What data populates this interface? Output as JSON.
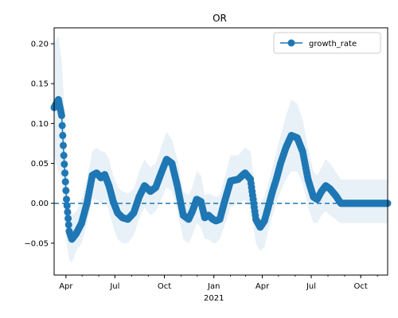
{
  "chart_data": {
    "type": "line",
    "title": "OR",
    "xlabel": "",
    "ylabel": "",
    "x_start": "2020-03-10",
    "x_end": "2021-11-20",
    "ylim": [
      -0.09,
      0.22
    ],
    "x_ticks": [
      {
        "date": "2020-04-01",
        "label": "Apr"
      },
      {
        "date": "2020-07-01",
        "label": "Jul"
      },
      {
        "date": "2020-10-01",
        "label": "Oct"
      },
      {
        "date": "2021-01-01",
        "label": "Jan"
      },
      {
        "date": "2021-04-01",
        "label": "Apr"
      },
      {
        "date": "2021-07-01",
        "label": "Jul"
      },
      {
        "date": "2021-10-01",
        "label": "Oct"
      }
    ],
    "x_year_label": "2021",
    "y_ticks": [
      -0.05,
      0.0,
      0.05,
      0.1,
      0.15,
      0.2
    ],
    "y_tick_labels": [
      "−0.05",
      "0.00",
      "0.05",
      "0.10",
      "0.15",
      "0.20"
    ],
    "reference_line_y": 0,
    "legend_position": "top-right",
    "series": [
      {
        "name": "growth_rate",
        "color": "#1f77b4",
        "x": [
          "2020-03-10",
          "2020-03-18",
          "2020-03-24",
          "2020-03-28",
          "2020-04-02",
          "2020-04-07",
          "2020-04-12",
          "2020-04-20",
          "2020-04-30",
          "2020-05-10",
          "2020-05-20",
          "2020-05-28",
          "2020-06-05",
          "2020-06-12",
          "2020-06-20",
          "2020-06-28",
          "2020-07-06",
          "2020-07-15",
          "2020-07-25",
          "2020-08-05",
          "2020-08-15",
          "2020-08-25",
          "2020-09-05",
          "2020-09-15",
          "2020-09-25",
          "2020-10-05",
          "2020-10-15",
          "2020-10-25",
          "2020-11-05",
          "2020-11-15",
          "2020-11-22",
          "2020-11-30",
          "2020-12-08",
          "2020-12-15",
          "2020-12-22",
          "2020-12-30",
          "2021-01-05",
          "2021-01-12",
          "2021-01-20",
          "2021-02-01",
          "2021-02-15",
          "2021-02-28",
          "2021-03-10",
          "2021-03-20",
          "2021-03-28",
          "2021-04-05",
          "2021-04-12",
          "2021-04-20",
          "2021-04-27",
          "2021-05-05",
          "2021-05-15",
          "2021-05-25",
          "2021-06-05",
          "2021-06-15",
          "2021-06-25",
          "2021-07-05",
          "2021-07-12",
          "2021-07-20",
          "2021-07-28",
          "2021-08-05",
          "2021-08-15",
          "2021-08-25",
          "2021-09-05",
          "2021-09-15",
          "2021-09-25",
          "2021-10-05",
          "2021-10-12",
          "2021-10-20",
          "2021-10-28",
          "2021-11-05",
          "2021-11-20"
        ],
        "values": [
          0.12,
          0.13,
          0.11,
          0.06,
          0.005,
          -0.035,
          -0.045,
          -0.038,
          -0.025,
          0.0,
          0.035,
          0.038,
          0.032,
          0.036,
          0.022,
          0.002,
          -0.012,
          -0.018,
          -0.02,
          -0.012,
          0.008,
          0.022,
          0.015,
          0.02,
          0.038,
          0.055,
          0.05,
          0.022,
          -0.015,
          -0.02,
          -0.01,
          0.005,
          0.002,
          -0.018,
          -0.015,
          -0.02,
          -0.022,
          -0.02,
          0.0,
          0.028,
          0.03,
          0.038,
          0.03,
          -0.02,
          -0.03,
          -0.022,
          -0.005,
          0.015,
          0.03,
          0.05,
          0.07,
          0.085,
          0.082,
          0.065,
          0.03,
          0.008,
          0.005,
          0.015,
          0.022,
          0.018,
          0.01,
          0.0,
          0.0,
          0.0,
          0.0,
          0.0,
          0.0,
          0.0,
          0.0,
          0.0,
          0.0
        ],
        "lower": [
          0.06,
          0.04,
          0.03,
          0.0,
          -0.05,
          -0.07,
          -0.075,
          -0.06,
          -0.05,
          -0.025,
          0.005,
          0.005,
          0.0,
          0.005,
          -0.01,
          -0.03,
          -0.045,
          -0.05,
          -0.05,
          -0.04,
          -0.02,
          -0.005,
          -0.015,
          -0.01,
          0.005,
          0.02,
          0.015,
          -0.01,
          -0.045,
          -0.05,
          -0.04,
          -0.025,
          -0.03,
          -0.045,
          -0.045,
          -0.05,
          -0.05,
          -0.045,
          -0.03,
          -0.005,
          0.0,
          0.005,
          -0.005,
          -0.05,
          -0.06,
          -0.055,
          -0.035,
          -0.015,
          0.0,
          0.015,
          0.03,
          0.04,
          0.04,
          0.025,
          -0.005,
          -0.025,
          -0.025,
          -0.015,
          -0.01,
          -0.015,
          -0.02,
          -0.025,
          -0.025,
          -0.025,
          -0.025,
          -0.025,
          -0.025,
          -0.025,
          -0.025,
          -0.025,
          -0.025
        ],
        "upper": [
          0.2,
          0.21,
          0.18,
          0.13,
          0.07,
          0.0,
          -0.015,
          -0.01,
          0.005,
          0.03,
          0.065,
          0.07,
          0.065,
          0.065,
          0.055,
          0.035,
          0.02,
          0.015,
          0.012,
          0.018,
          0.04,
          0.055,
          0.045,
          0.05,
          0.07,
          0.09,
          0.08,
          0.055,
          0.015,
          0.01,
          0.02,
          0.04,
          0.035,
          0.01,
          0.012,
          0.01,
          0.008,
          0.01,
          0.03,
          0.06,
          0.06,
          0.07,
          0.065,
          0.01,
          0.0,
          0.008,
          0.025,
          0.045,
          0.065,
          0.085,
          0.11,
          0.13,
          0.125,
          0.105,
          0.07,
          0.04,
          0.035,
          0.045,
          0.055,
          0.05,
          0.04,
          0.03,
          0.03,
          0.03,
          0.03,
          0.03,
          0.03,
          0.03,
          0.03,
          0.03,
          0.03
        ]
      }
    ]
  }
}
